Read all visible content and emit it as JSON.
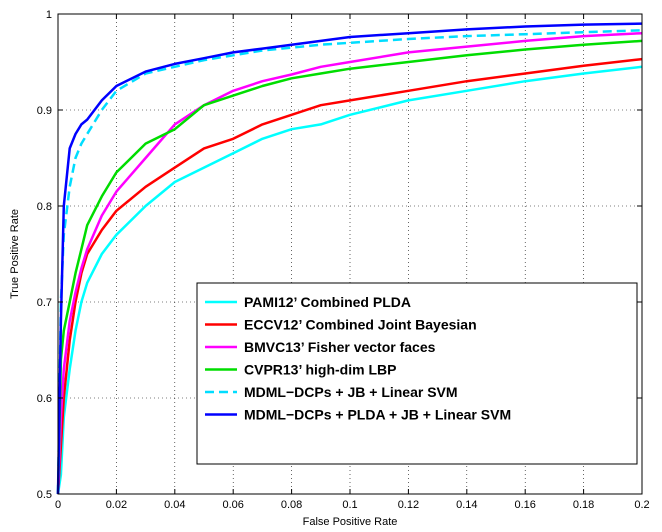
{
  "chart_data": {
    "type": "line",
    "xlabel": "False Positive Rate",
    "ylabel": "True Positive Rate",
    "xlim": [
      0,
      0.2
    ],
    "ylim": [
      0.5,
      1
    ],
    "xticks": [
      "0",
      "0.02",
      "0.04",
      "0.06",
      "0.08",
      "0.1",
      "0.12",
      "0.14",
      "0.16",
      "0.18",
      "0.2"
    ],
    "yticks": [
      "0.5",
      "0.6",
      "0.7",
      "0.8",
      "0.9",
      "1"
    ],
    "grid": true,
    "legend_position": "bottom-right",
    "series": [
      {
        "name": "PAMI12’ Combined PLDA",
        "color": "#00ffff",
        "dashed": false,
        "x": [
          0.0,
          0.001,
          0.002,
          0.004,
          0.006,
          0.008,
          0.01,
          0.015,
          0.02,
          0.03,
          0.04,
          0.05,
          0.06,
          0.07,
          0.08,
          0.09,
          0.1,
          0.12,
          0.14,
          0.16,
          0.18,
          0.2
        ],
        "y": [
          0.5,
          0.52,
          0.58,
          0.63,
          0.67,
          0.7,
          0.72,
          0.75,
          0.77,
          0.8,
          0.825,
          0.84,
          0.855,
          0.87,
          0.88,
          0.885,
          0.895,
          0.91,
          0.92,
          0.93,
          0.938,
          0.945
        ]
      },
      {
        "name": "ECCV12’ Combined Joint Bayesian",
        "color": "#ff0000",
        "dashed": false,
        "x": [
          0.0,
          0.001,
          0.002,
          0.004,
          0.006,
          0.008,
          0.01,
          0.015,
          0.02,
          0.03,
          0.04,
          0.05,
          0.06,
          0.07,
          0.08,
          0.09,
          0.1,
          0.12,
          0.14,
          0.16,
          0.18,
          0.2
        ],
        "y": [
          0.5,
          0.55,
          0.6,
          0.66,
          0.7,
          0.73,
          0.75,
          0.775,
          0.795,
          0.82,
          0.84,
          0.86,
          0.87,
          0.885,
          0.895,
          0.905,
          0.91,
          0.92,
          0.93,
          0.938,
          0.946,
          0.953
        ]
      },
      {
        "name": "BMVC13’ Fisher vector faces",
        "color": "#ff00ff",
        "dashed": false,
        "x": [
          0.0,
          0.001,
          0.002,
          0.004,
          0.006,
          0.008,
          0.01,
          0.015,
          0.02,
          0.03,
          0.04,
          0.05,
          0.06,
          0.07,
          0.08,
          0.09,
          0.1,
          0.12,
          0.14,
          0.16,
          0.18,
          0.2
        ],
        "y": [
          0.5,
          0.58,
          0.63,
          0.68,
          0.71,
          0.735,
          0.755,
          0.79,
          0.815,
          0.85,
          0.885,
          0.905,
          0.92,
          0.93,
          0.937,
          0.945,
          0.95,
          0.96,
          0.966,
          0.972,
          0.977,
          0.98
        ]
      },
      {
        "name": "CVPR13’ high-dim LBP",
        "color": "#00dd00",
        "dashed": false,
        "x": [
          0.0,
          0.001,
          0.002,
          0.004,
          0.006,
          0.008,
          0.01,
          0.015,
          0.02,
          0.03,
          0.04,
          0.05,
          0.06,
          0.07,
          0.08,
          0.09,
          0.1,
          0.12,
          0.14,
          0.16,
          0.18,
          0.2
        ],
        "y": [
          0.5,
          0.64,
          0.67,
          0.7,
          0.73,
          0.755,
          0.78,
          0.81,
          0.835,
          0.865,
          0.88,
          0.905,
          0.915,
          0.925,
          0.933,
          0.938,
          0.943,
          0.95,
          0.957,
          0.963,
          0.968,
          0.972
        ]
      },
      {
        "name": "MDML−DCPs + JB + Linear SVM",
        "color": "#00ddff",
        "dashed": true,
        "x": [
          0.0,
          0.001,
          0.002,
          0.004,
          0.006,
          0.008,
          0.01,
          0.015,
          0.02,
          0.03,
          0.04,
          0.05,
          0.06,
          0.07,
          0.08,
          0.09,
          0.1,
          0.12,
          0.14,
          0.16,
          0.18,
          0.2
        ],
        "y": [
          0.5,
          0.7,
          0.77,
          0.82,
          0.85,
          0.865,
          0.875,
          0.9,
          0.92,
          0.938,
          0.945,
          0.952,
          0.957,
          0.962,
          0.965,
          0.968,
          0.97,
          0.974,
          0.977,
          0.979,
          0.981,
          0.983
        ]
      },
      {
        "name": "MDML−DCPs + PLDA + JB + Linear SVM",
        "color": "#0000ff",
        "dashed": false,
        "x": [
          0.0,
          0.001,
          0.002,
          0.004,
          0.006,
          0.008,
          0.01,
          0.015,
          0.02,
          0.03,
          0.04,
          0.05,
          0.06,
          0.07,
          0.08,
          0.09,
          0.1,
          0.12,
          0.14,
          0.16,
          0.18,
          0.2
        ],
        "y": [
          0.5,
          0.68,
          0.8,
          0.86,
          0.875,
          0.885,
          0.89,
          0.91,
          0.925,
          0.94,
          0.948,
          0.954,
          0.96,
          0.964,
          0.968,
          0.972,
          0.976,
          0.98,
          0.984,
          0.987,
          0.989,
          0.99
        ]
      }
    ]
  }
}
